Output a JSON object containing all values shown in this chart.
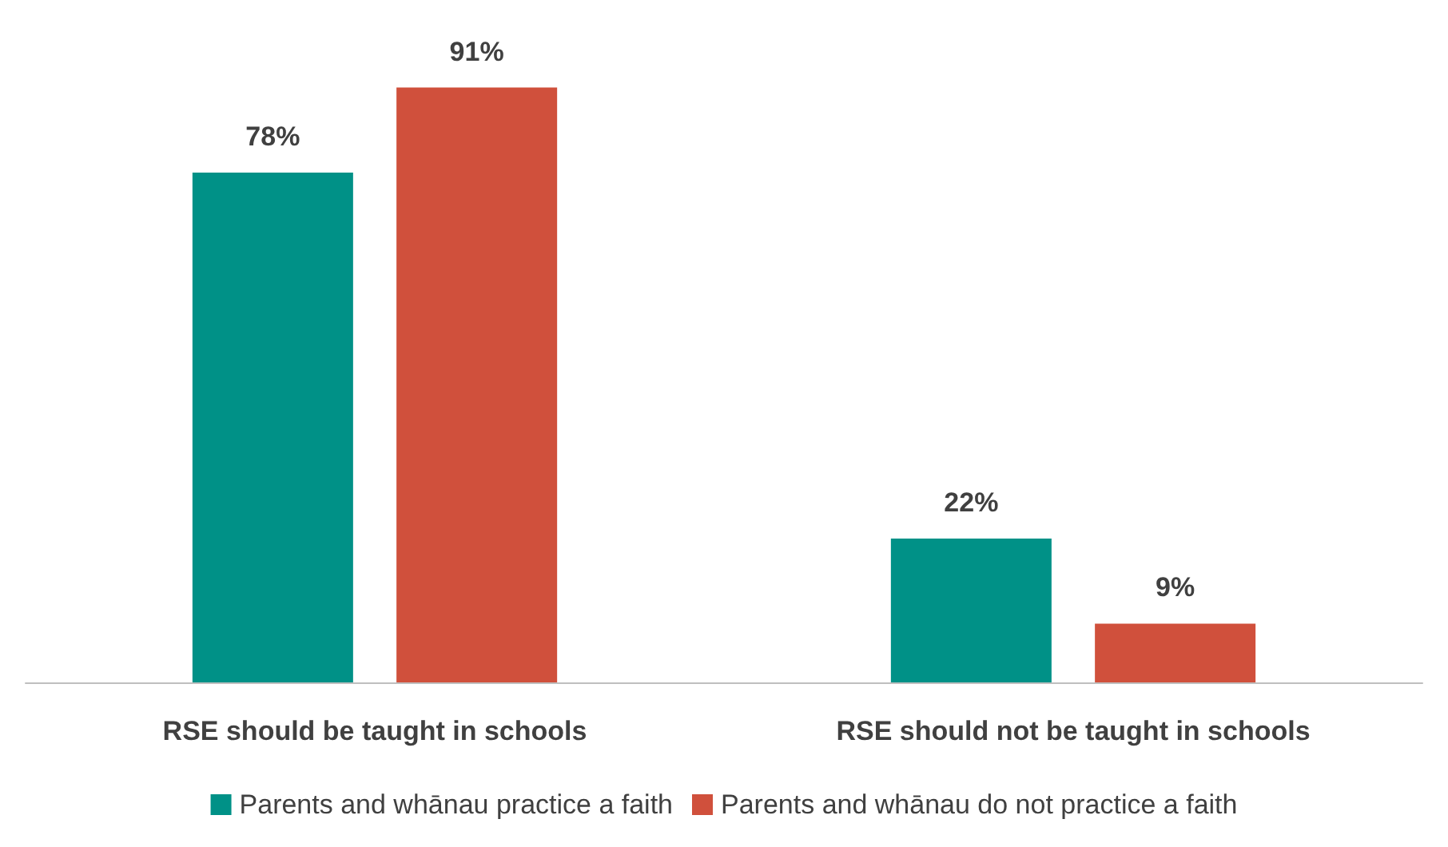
{
  "chart_data": {
    "type": "bar",
    "categories": [
      "RSE should be taught in schools",
      "RSE should not be taught in schools"
    ],
    "series": [
      {
        "name": "Parents and whānau practice a faith",
        "color": "#009187",
        "values": [
          78,
          22
        ],
        "value_labels": [
          "78%",
          "22%"
        ]
      },
      {
        "name": "Parents and whānau do not practice a faith",
        "color": "#d0503c",
        "values": [
          91,
          9
        ],
        "value_labels": [
          "91%",
          "9%"
        ]
      }
    ],
    "legend": "bottom"
  }
}
